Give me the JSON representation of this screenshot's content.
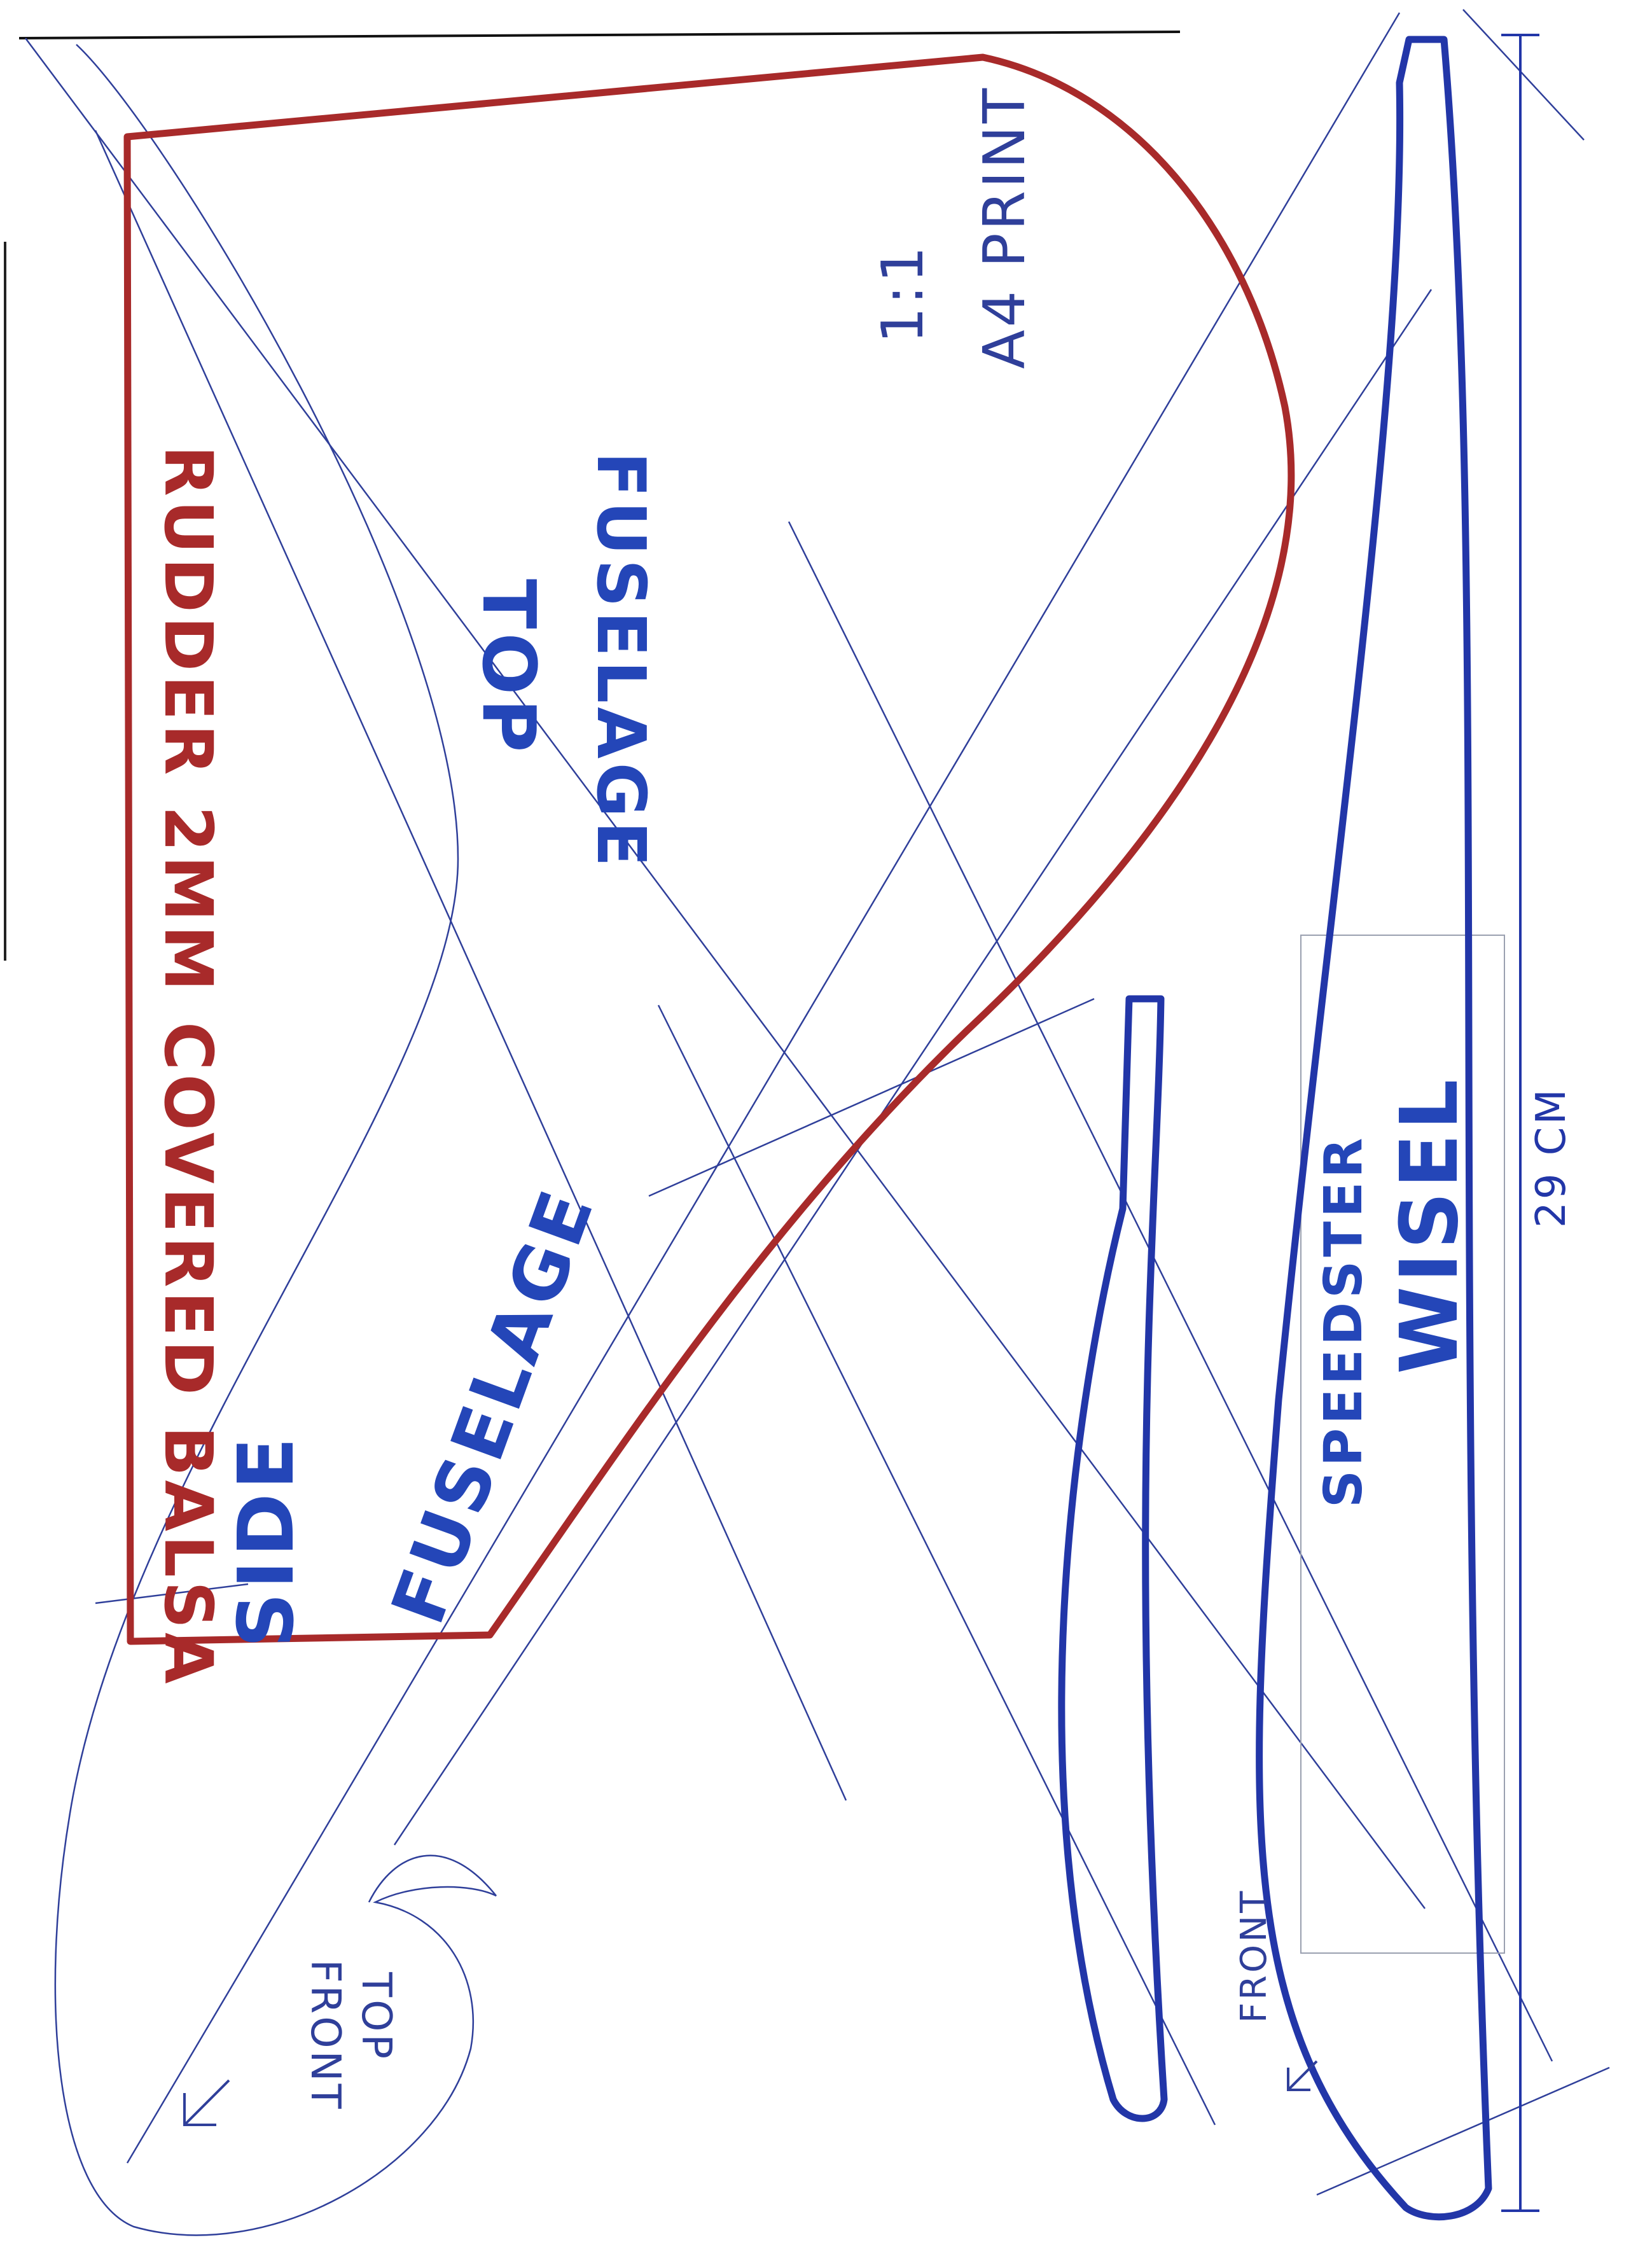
{
  "colors": {
    "rudder_outline": "#a82a2a",
    "fuselage_outline": "#2236a8",
    "construction_line": "#2f3f9a",
    "pencil_label": "#2f3f9a",
    "rudder_label": "#a82a2a",
    "fuselage_label": "#2446b8"
  },
  "labels": {
    "rudder_material": "RUDDER 2MM COVERED BALSA",
    "top_fuselage_line1": "TOP",
    "top_fuselage_line2": "FUSELAGE",
    "side_fuselage_line1": "SIDE",
    "side_fuselage_line2": "FUSELAGE",
    "print_scale": "1:1",
    "print_paper": "A4 PRINT",
    "model_line1": "SPEEDSTER",
    "model_line2": "WISEL",
    "length_dimension": "29 CM",
    "front_marker_top": "TOP",
    "front_marker_front": "FRONT",
    "front_marker_fuselage": "FRONT"
  },
  "icons": {
    "front_arrow_left": "arrow-down-left-icon",
    "front_arrow_right": "arrow-down-left-icon"
  }
}
